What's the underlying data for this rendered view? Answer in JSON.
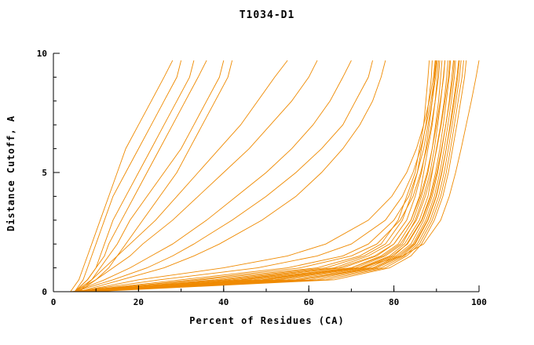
{
  "chart_data": {
    "type": "line",
    "title": "T1034-D1",
    "xlabel": "Percent of Residues (CA)",
    "ylabel": "Distance Cutoff, A",
    "xlim": [
      0,
      100
    ],
    "ylim": [
      0,
      10
    ],
    "x_ticks": [
      0,
      20,
      40,
      60,
      80,
      100
    ],
    "x_minor_step": 10,
    "y_ticks": [
      0,
      5,
      10
    ],
    "y_minor_step": 1,
    "grid": false,
    "legend": "none",
    "line_color": "#ef8a00",
    "axis_color": "#000000",
    "background": "#ffffff",
    "y_levels": [
      0,
      0.5,
      1,
      1.5,
      2,
      3,
      4,
      5,
      6,
      7,
      8,
      9,
      9.7
    ],
    "series": [
      {
        "x": [
          4,
          6,
          7,
          8,
          9,
          11,
          13,
          15,
          17,
          20,
          23,
          26,
          28
        ]
      },
      {
        "x": [
          5,
          7,
          8,
          9,
          10,
          12,
          14,
          17,
          20,
          23,
          26,
          29,
          30
        ]
      },
      {
        "x": [
          5,
          8,
          10,
          11,
          12,
          14,
          17,
          20,
          23,
          26,
          29,
          32,
          33
        ]
      },
      {
        "x": [
          5,
          8,
          10,
          12,
          13,
          16,
          19,
          22,
          25,
          28,
          31,
          34,
          36
        ]
      },
      {
        "x": [
          6,
          9,
          11,
          13,
          15,
          18,
          22,
          26,
          30,
          33,
          36,
          39,
          40
        ]
      },
      {
        "x": [
          6,
          10,
          13,
          15,
          17,
          21,
          25,
          29,
          32,
          35,
          38,
          41,
          42
        ]
      },
      {
        "x": [
          5,
          9,
          12,
          15,
          18,
          24,
          29,
          34,
          39,
          44,
          48,
          52,
          55
        ]
      },
      {
        "x": [
          5,
          10,
          14,
          18,
          21,
          28,
          34,
          40,
          46,
          51,
          56,
          60,
          62
        ]
      },
      {
        "x": [
          5,
          12,
          18,
          23,
          28,
          36,
          43,
          50,
          56,
          61,
          65,
          68,
          70
        ]
      },
      {
        "x": [
          5,
          14,
          22,
          28,
          33,
          42,
          50,
          57,
          63,
          68,
          71,
          74,
          75
        ]
      },
      {
        "x": [
          6,
          16,
          26,
          33,
          39,
          49,
          57,
          63,
          68,
          72,
          75,
          77,
          78
        ]
      },
      {
        "x": [
          4,
          35,
          62,
          72,
          77,
          81,
          83,
          85,
          86,
          87,
          87.5,
          88,
          88.3
        ]
      },
      {
        "x": [
          5,
          38,
          64,
          73,
          78,
          82,
          84,
          85.5,
          86.5,
          87.5,
          88.2,
          88.8,
          89
        ]
      },
      {
        "x": [
          5,
          40,
          66,
          74,
          79,
          83,
          85,
          86.5,
          87.5,
          88.3,
          89,
          89.5,
          89.8
        ]
      },
      {
        "x": [
          5,
          42,
          68,
          76,
          80,
          84,
          86,
          87,
          88,
          89,
          89.7,
          90.2,
          90.5
        ]
      },
      {
        "x": [
          6,
          45,
          70,
          77,
          81,
          84.5,
          86.5,
          88,
          89,
          89.8,
          90.5,
          91,
          91.3
        ]
      },
      {
        "x": [
          6,
          47,
          71,
          78,
          82,
          85,
          87,
          88.5,
          89.5,
          90.3,
          91,
          91.6,
          92
        ]
      },
      {
        "x": [
          6,
          50,
          72,
          79,
          82.5,
          86,
          88,
          89,
          90,
          91,
          91.8,
          92.4,
          92.7
        ]
      },
      {
        "x": [
          7,
          52,
          73,
          80,
          83,
          86.5,
          88.5,
          89.8,
          90.8,
          91.6,
          92.3,
          93,
          93.3
        ]
      },
      {
        "x": [
          7,
          55,
          74,
          80.5,
          84,
          87,
          89,
          90.3,
          91.3,
          92.2,
          93,
          93.6,
          94
        ]
      },
      {
        "x": [
          7,
          57,
          75,
          81,
          84.5,
          87.5,
          89.5,
          90.8,
          91.8,
          92.7,
          93.5,
          94.2,
          94.5
        ]
      },
      {
        "x": [
          8,
          60,
          76,
          82,
          85,
          88,
          90,
          91.3,
          92.3,
          93.2,
          94,
          94.8,
          95.2
        ]
      },
      {
        "x": [
          8,
          62,
          77,
          82.5,
          85.5,
          88.5,
          90.5,
          91.8,
          92.8,
          93.7,
          94.6,
          95.4,
          95.8
        ]
      },
      {
        "x": [
          8,
          64,
          78,
          83,
          86,
          89,
          91,
          92.3,
          93.3,
          94.2,
          95.1,
          96,
          96.4
        ]
      },
      {
        "x": [
          9,
          66,
          79,
          84,
          86.5,
          89.5,
          91.5,
          92.8,
          93.8,
          94.8,
          95.7,
          96.6,
          97
        ]
      },
      {
        "x": [
          5,
          30,
          55,
          68,
          74,
          80,
          83.5,
          85.5,
          87,
          88,
          89,
          89.8,
          90.2
        ]
      },
      {
        "x": [
          5,
          25,
          48,
          62,
          70,
          78,
          82,
          84.5,
          86.3,
          87.6,
          88.7,
          89.6,
          90
        ]
      },
      {
        "x": [
          6,
          20,
          40,
          55,
          64,
          74,
          79.5,
          83,
          85.3,
          87,
          88.3,
          89.3,
          89.7
        ]
      },
      {
        "x": [
          6,
          33,
          58,
          70,
          76,
          81.5,
          84.5,
          86.3,
          87.7,
          88.8,
          89.7,
          90.5,
          90.8
        ]
      },
      {
        "x": [
          7,
          44,
          67,
          75.5,
          80,
          84,
          86.2,
          87.8,
          89,
          90,
          90.9,
          91.7,
          92
        ]
      },
      {
        "x": [
          7,
          49,
          70,
          77.5,
          81.5,
          85.3,
          87.4,
          88.9,
          90.1,
          91.1,
          92,
          92.8,
          93.1
        ]
      },
      {
        "x": [
          8,
          53,
          72.5,
          79.5,
          83.2,
          86.6,
          88.7,
          90.1,
          91.2,
          92.2,
          93.1,
          93.9,
          94.2
        ]
      },
      {
        "x": [
          9,
          58,
          75.5,
          81.5,
          84.8,
          87.9,
          89.9,
          91.2,
          92.3,
          93.3,
          94.2,
          95,
          95.4
        ]
      },
      {
        "x": [
          5,
          50,
          72,
          82,
          87,
          91,
          93,
          94.5,
          95.8,
          97,
          98.2,
          99.3,
          100
        ]
      }
    ]
  }
}
